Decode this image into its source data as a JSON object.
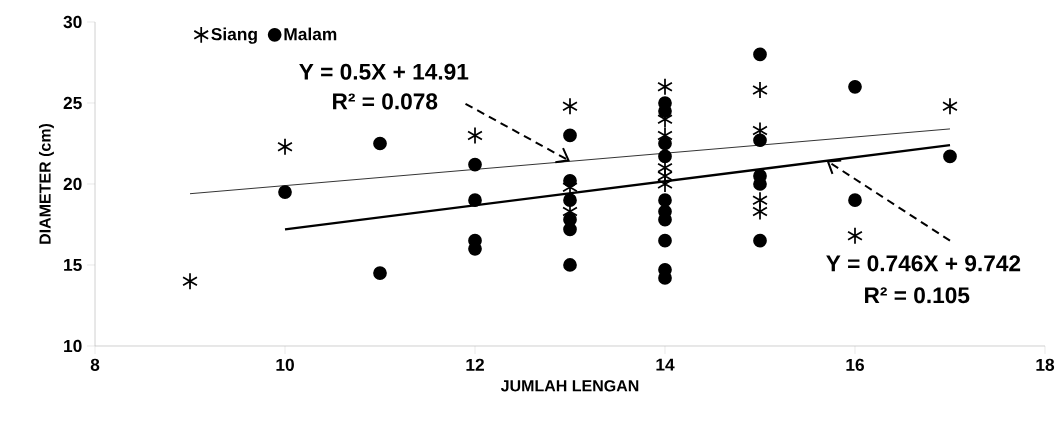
{
  "chart_data": {
    "type": "scatter",
    "xlabel": "JUMLAH LENGAN",
    "ylabel": "DIAMETER (cm)",
    "xlim": [
      8,
      18
    ],
    "xticks": [
      8,
      10,
      12,
      14,
      16,
      18
    ],
    "ylim": [
      10,
      30
    ],
    "yticks": [
      10,
      15,
      20,
      25,
      30
    ],
    "legend": "top left",
    "grid": false,
    "series": [
      {
        "name": "Siang",
        "marker": "cross",
        "color": "#000000",
        "x": [
          9,
          10,
          12,
          13,
          13,
          13,
          14,
          14,
          14,
          14,
          14,
          14,
          15,
          15,
          15,
          15,
          16,
          17
        ],
        "values": [
          14,
          22.3,
          23,
          24.8,
          19.8,
          18.3,
          26,
          24,
          23,
          21,
          20.5,
          20,
          25.8,
          23.3,
          19,
          18.3,
          16.8,
          24.8
        ]
      },
      {
        "name": "Malam",
        "marker": "circle",
        "color": "#000000",
        "x": [
          10,
          11,
          11,
          12,
          12,
          12,
          12,
          13,
          13,
          13,
          13,
          13,
          13,
          14,
          14,
          14,
          14,
          14,
          14,
          14,
          14,
          14,
          14,
          15,
          15,
          15,
          15,
          15,
          16,
          16,
          17
        ],
        "values": [
          19.5,
          22.5,
          14.5,
          21.2,
          19,
          16.5,
          16,
          23,
          20.2,
          19,
          17.8,
          17.2,
          15,
          25,
          24.5,
          22.5,
          21.7,
          19,
          18.3,
          17.8,
          16.5,
          14.7,
          14.2,
          28,
          22.7,
          20.5,
          20,
          16.5,
          26,
          19,
          21.7
        ]
      },
      {
        "type": "line",
        "marker": "none",
        "line_style": "solid",
        "color": "#000000",
        "x": [
          9,
          17
        ],
        "values": [
          19.4,
          23.4
        ]
      },
      {
        "type": "line",
        "marker": "none",
        "line_style": "solid",
        "color": "#000000",
        "x": [
          10,
          17
        ],
        "values": [
          17.2,
          22.4
        ]
      }
    ],
    "annotations": [
      "Y = 0.5X + 14.91",
      {
        "text": "R² = 0.078",
        "x": 13,
        "y": 21.41
      },
      {
        "text": "Y = 0.746X + 9.742",
        "x": 15.7,
        "y": 21.45
      },
      "R² = 0.105"
    ]
  }
}
